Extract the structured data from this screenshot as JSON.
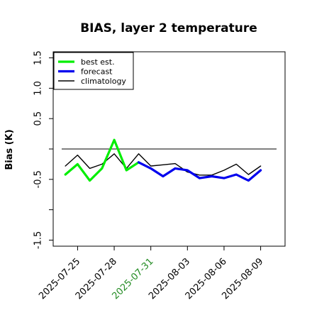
{
  "chart_data": {
    "type": "line",
    "title": "BIAS, layer 2 temperature",
    "xlabel": "",
    "ylabel": "Bias (K)",
    "ylim": [
      -1.6,
      1.6
    ],
    "yticks": [
      -1.5,
      -0.5,
      0.5,
      1.0,
      1.5
    ],
    "ytick_labels": [
      "-1.5",
      "-0.5",
      "0.5",
      "1.0",
      "1.5"
    ],
    "xticks": [
      "2025-07-25",
      "2025-07-28",
      "2025-07-31",
      "2025-08-03",
      "2025-08-06",
      "2025-08-09"
    ],
    "xtick_colors": [
      "#000000",
      "#000000",
      "#228b22",
      "#000000",
      "#000000",
      "#000000"
    ],
    "xlim": [
      "2025-07-23",
      "2025-08-11"
    ],
    "reference_line": 0.0,
    "legend": {
      "placement": "top-left"
    },
    "grid": false,
    "series": [
      {
        "name": "best est.",
        "color": "#00ee00",
        "x": [
          "2025-07-24",
          "2025-07-25",
          "2025-07-26",
          "2025-07-27",
          "2025-07-28",
          "2025-07-29",
          "2025-07-30"
        ],
        "values": [
          -0.42,
          -0.25,
          -0.52,
          -0.32,
          0.15,
          -0.35,
          -0.22
        ]
      },
      {
        "name": "forecast",
        "color": "#0000ee",
        "x": [
          "2025-07-30",
          "2025-07-31",
          "2025-08-01",
          "2025-08-02",
          "2025-08-03",
          "2025-08-04",
          "2025-08-05",
          "2025-08-06",
          "2025-08-07",
          "2025-08-08",
          "2025-08-09"
        ],
        "values": [
          -0.22,
          -0.32,
          -0.45,
          -0.32,
          -0.35,
          -0.48,
          -0.45,
          -0.48,
          -0.42,
          -0.52,
          -0.35
        ]
      },
      {
        "name": "climatology",
        "color": "#000000",
        "x": [
          "2025-07-24",
          "2025-07-25",
          "2025-07-26",
          "2025-07-27",
          "2025-07-28",
          "2025-07-29",
          "2025-07-30",
          "2025-07-31",
          "2025-08-01",
          "2025-08-02",
          "2025-08-03",
          "2025-08-04",
          "2025-08-05",
          "2025-08-06",
          "2025-08-07",
          "2025-08-08",
          "2025-08-09"
        ],
        "values": [
          -0.28,
          -0.1,
          -0.32,
          -0.25,
          -0.08,
          -0.32,
          -0.08,
          -0.28,
          -0.26,
          -0.24,
          -0.38,
          -0.43,
          -0.43,
          -0.35,
          -0.25,
          -0.42,
          -0.28
        ]
      }
    ],
    "legend_order": [
      "best est.",
      "forecast",
      "climatology"
    ]
  }
}
